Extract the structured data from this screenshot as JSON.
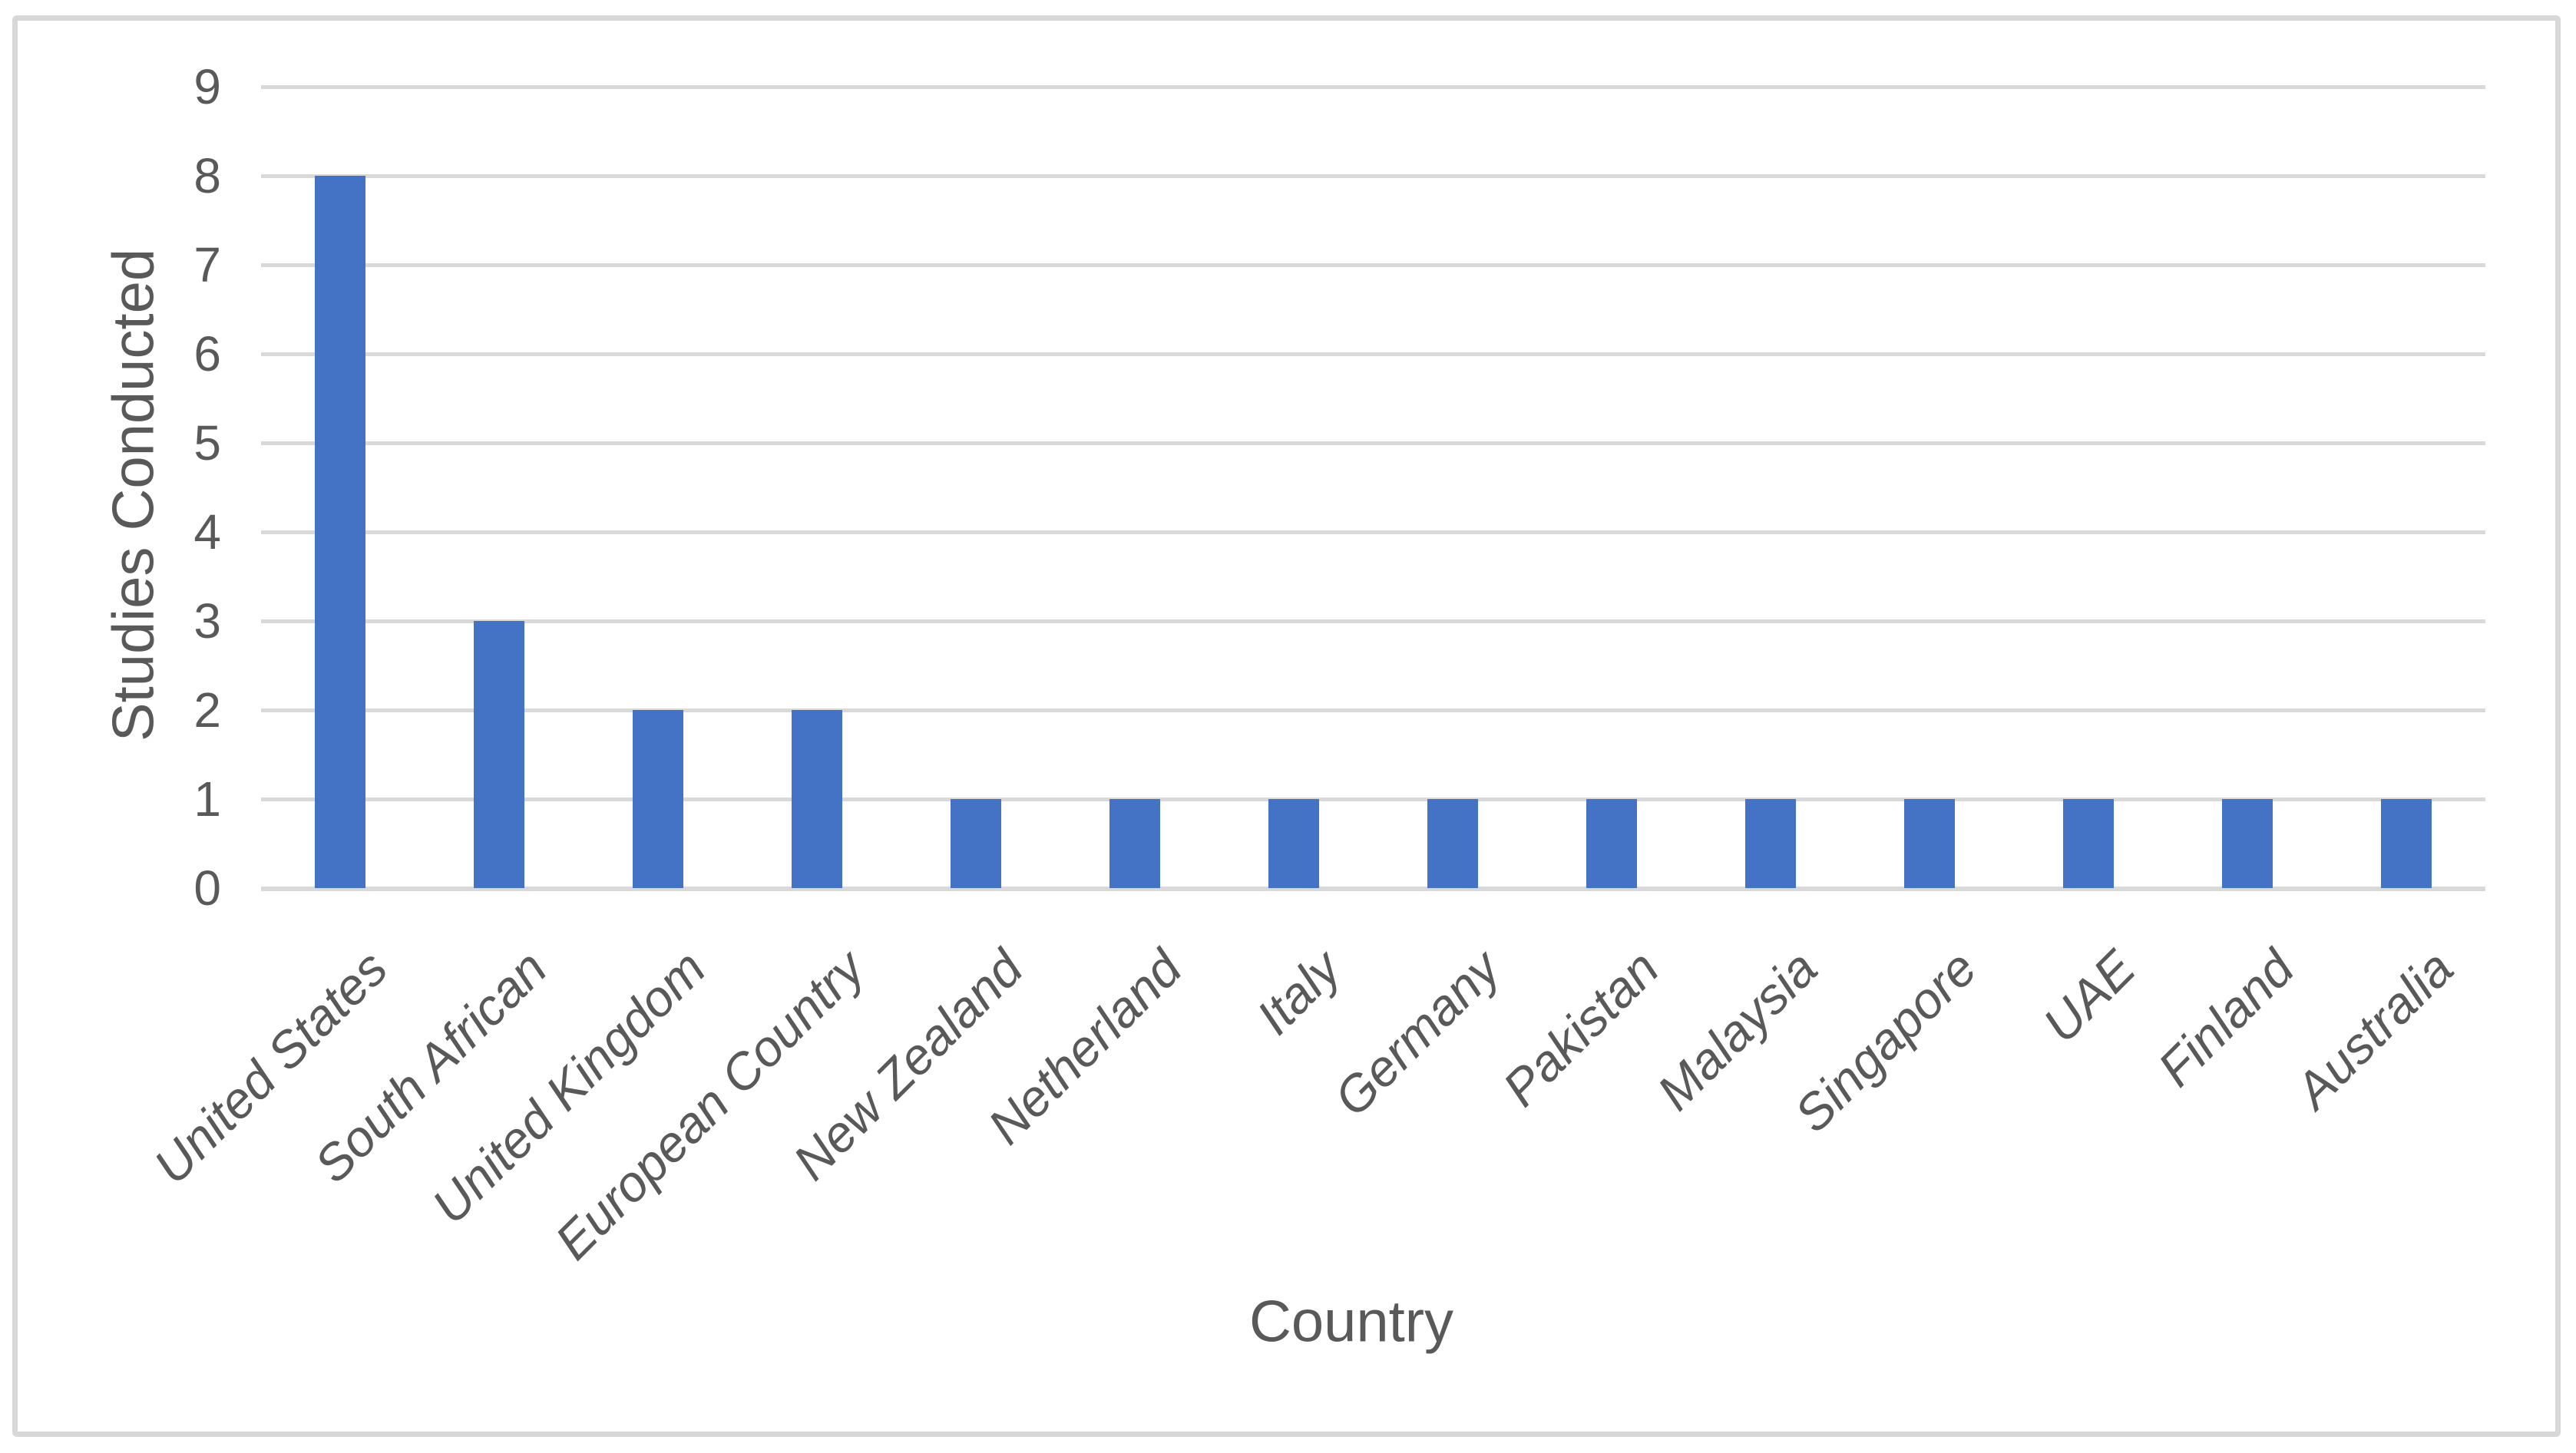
{
  "figure": {
    "background": "#FFFFFF",
    "border_color": "#D8D8D8"
  },
  "chart_data": {
    "type": "bar",
    "title": "",
    "xlabel": "Country",
    "ylabel": "Studies Conducted",
    "categories": [
      "United States",
      "South African",
      "United Kingdom",
      "European Country",
      "New Zealand",
      "Netherland",
      "Italy",
      "Germany",
      "Pakistan",
      "Malaysia",
      "Singapore",
      "UAE",
      "Finland",
      "Australia"
    ],
    "values": [
      8,
      3,
      2,
      2,
      1,
      1,
      1,
      1,
      1,
      1,
      1,
      1,
      1,
      1
    ],
    "ylim": [
      0,
      9
    ],
    "ytick_interval": 1,
    "yticks": [
      0,
      1,
      2,
      3,
      4,
      5,
      6,
      7,
      8,
      9
    ],
    "grid": "horizontal",
    "legend": "none",
    "bar_color": "#4472C4",
    "gridline_color": "#D9D9D9",
    "axis_text_color": "#595959"
  }
}
